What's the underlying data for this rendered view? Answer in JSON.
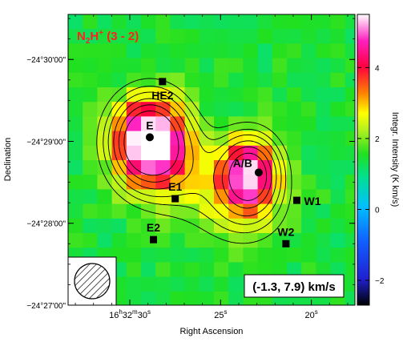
{
  "chart_data": {
    "type": "heatmap",
    "title": "N2H+ (3 - 2)",
    "title_parts": {
      "base": "N",
      "sub": "2",
      "mid": "H",
      "sup": "+",
      "rest": " (3 - 2)"
    },
    "velocity_label": "(-1.3, 7.9) km/s",
    "xlabel": "Right Ascension",
    "ylabel": "Declination",
    "colorbar_label": "Integr. Intensity (K km/s)",
    "colorbar_range": [
      -2.7,
      5.5
    ],
    "colorbar_ticks": [
      {
        "value": 4,
        "label": "4"
      },
      {
        "value": 2,
        "label": "2"
      },
      {
        "value": 0,
        "label": "0"
      },
      {
        "value": -2,
        "label": "−2"
      }
    ],
    "x_range_sec": [
      33.4,
      17.6
    ],
    "y_range_arcsec": [
      -30.55,
      -27.0
    ],
    "x_ticks": [
      {
        "value": 30,
        "label": "16h32m30s",
        "parts": [
          "16",
          "h",
          "32",
          "m",
          "30",
          "s"
        ]
      },
      {
        "value": 25,
        "label": "25s",
        "parts": [
          "25",
          "s"
        ]
      },
      {
        "value": 20,
        "label": "20s",
        "parts": [
          "20",
          "s"
        ]
      }
    ],
    "y_ticks": [
      {
        "value": -27.0,
        "label": "−24°27'00\""
      },
      {
        "value": -28.0,
        "label": "−24°28'00\""
      },
      {
        "value": -29.0,
        "label": "−24°29'00\""
      },
      {
        "value": -30.0,
        "label": "−24°30'00\""
      }
    ],
    "sources": [
      {
        "name": "E2",
        "ra": 28.7,
        "dec": -27.8,
        "marker": "square",
        "label_pos": "above"
      },
      {
        "name": "W2",
        "ra": 21.4,
        "dec": -27.75,
        "marker": "square",
        "label_pos": "above"
      },
      {
        "name": "E1",
        "ra": 27.5,
        "dec": -28.3,
        "marker": "square",
        "label_pos": "above"
      },
      {
        "name": "W1",
        "ra": 20.8,
        "dec": -28.28,
        "marker": "square",
        "label_pos": "right"
      },
      {
        "name": "A/B",
        "ra": 22.9,
        "dec": -28.62,
        "marker": "circle",
        "label_pos": "upper-left"
      },
      {
        "name": "E",
        "ra": 28.9,
        "dec": -29.05,
        "marker": "circle",
        "label_pos": "above"
      },
      {
        "name": "HE2",
        "ra": 28.2,
        "dec": -29.73,
        "marker": "square",
        "label_pos": "below"
      }
    ],
    "peaks": [
      {
        "ra": 28.9,
        "dec": -29.0,
        "value": 5.2,
        "sigma_ra": 1.25,
        "sigma_dec": 0.33
      },
      {
        "ra": 23.4,
        "dec": -28.6,
        "value": 3.9,
        "sigma_ra": 1.0,
        "sigma_dec": 0.28
      },
      {
        "ra": 26.5,
        "dec": -28.6,
        "value": 0.9,
        "sigma_ra": 1.9,
        "sigma_dec": 0.35
      },
      {
        "ra": 23.8,
        "dec": -28.15,
        "value": 0.7,
        "sigma_ra": 1.6,
        "sigma_dec": 0.3
      }
    ],
    "background_level": 1.2,
    "contour_levels": [
      1.55,
      1.85,
      2.2,
      2.7,
      3.3,
      4.0
    ],
    "beam": "hatched circle, lower-left"
  }
}
